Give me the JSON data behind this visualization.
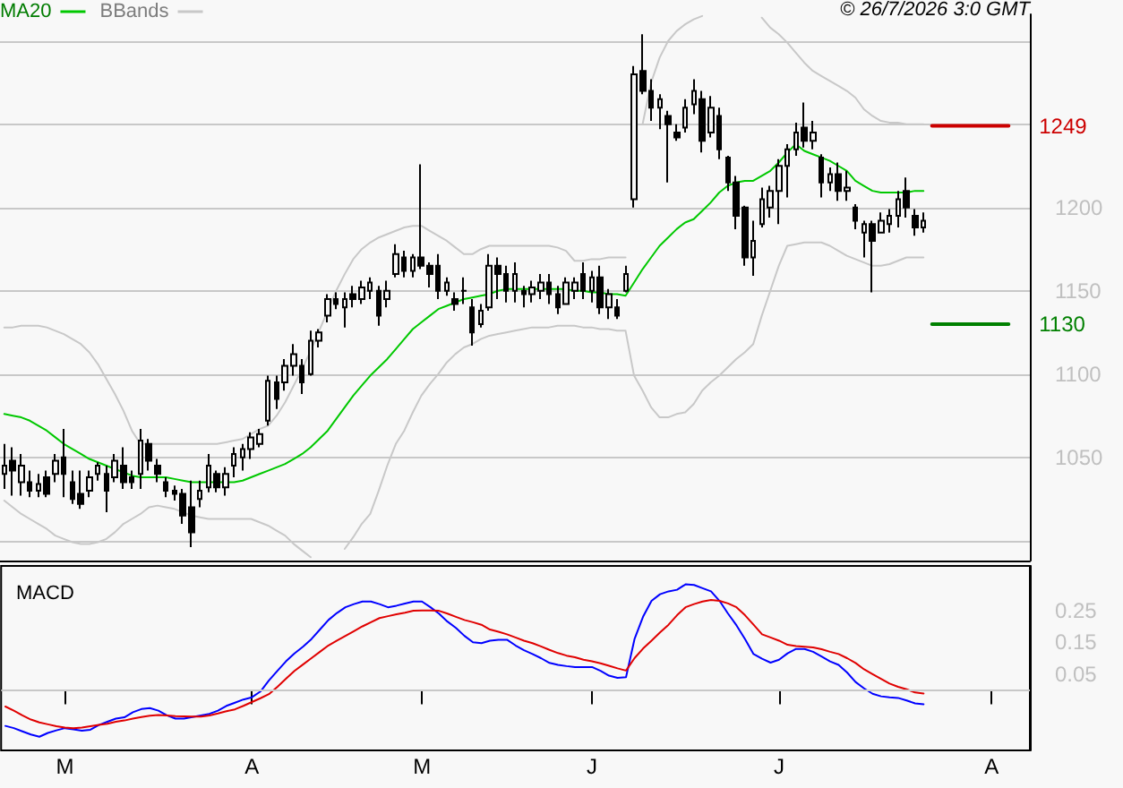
{
  "chart_data": [
    {
      "type": "candlestick",
      "color": "#000000",
      "marker": "none",
      "grid": "y",
      "legend": "top left",
      "tick_labels": "y",
      "annotations": [
        "© 26/7/2026 3:0 GMT"
      ],
      "categories": [
        null,
        null,
        null,
        null,
        null,
        null,
        null,
        null,
        null,
        null,
        null,
        null,
        null,
        null,
        null,
        null,
        null,
        null,
        null,
        null,
        null,
        null,
        null,
        null,
        null,
        null,
        null,
        null,
        null,
        null,
        null,
        null,
        null,
        null,
        null,
        null,
        null,
        null,
        null,
        null,
        null,
        null,
        null,
        null,
        null,
        null,
        null,
        null,
        null,
        null,
        null,
        null,
        null,
        null,
        null,
        null,
        null,
        null,
        null,
        null,
        null,
        null,
        null,
        null,
        null,
        null,
        null,
        null,
        null,
        null,
        null,
        null,
        null,
        null,
        null,
        null,
        null,
        null,
        null,
        null,
        null,
        null,
        null,
        null,
        null,
        null,
        null,
        null,
        null,
        null,
        null,
        null,
        null,
        null,
        null,
        null,
        null,
        null,
        null,
        null,
        null,
        null,
        null,
        null,
        null,
        null,
        null,
        null,
        null,
        null,
        null,
        null,
        null,
        null,
        null,
        null,
        null,
        null,
        null,
        null,
        null
      ],
      "ohlc": [
        [
          1040,
          1058,
          1031,
          1045
        ],
        [
          1048,
          1056,
          1027,
          1042
        ],
        [
          1035,
          1052,
          1027,
          1045
        ],
        [
          1035,
          1042,
          1026,
          1030
        ],
        [
          1030,
          1040,
          1026,
          1034
        ],
        [
          1038,
          1042,
          1026,
          1028
        ],
        [
          1040,
          1052,
          1035,
          1048
        ],
        [
          1050,
          1067,
          1026,
          1040
        ],
        [
          1035,
          1042,
          1022,
          1025
        ],
        [
          1028,
          1042,
          1019,
          1022
        ],
        [
          1030,
          1042,
          1026,
          1038
        ],
        [
          1040,
          1047,
          1036,
          1045
        ],
        [
          1040,
          1045,
          1017,
          1030
        ],
        [
          1038,
          1052,
          1035,
          1048
        ],
        [
          1045,
          1056,
          1031,
          1035
        ],
        [
          1038,
          1042,
          1031,
          1035
        ],
        [
          1040,
          1067,
          1031,
          1060
        ],
        [
          1058,
          1061,
          1042,
          1048
        ],
        [
          1045,
          1049,
          1035,
          1040
        ],
        [
          1035,
          1038,
          1026,
          1030
        ],
        [
          1030,
          1033,
          1024,
          1028
        ],
        [
          1028,
          1031,
          1010,
          1015
        ],
        [
          1020,
          1036,
          996,
          1005
        ],
        [
          1025,
          1036,
          1020,
          1030
        ],
        [
          1032,
          1052,
          1029,
          1045
        ],
        [
          1040,
          1042,
          1029,
          1032
        ],
        [
          1032,
          1044,
          1027,
          1040
        ],
        [
          1045,
          1056,
          1038,
          1052
        ],
        [
          1050,
          1058,
          1042,
          1055
        ],
        [
          1055,
          1065,
          1049,
          1062
        ],
        [
          1058,
          1067,
          1056,
          1064
        ],
        [
          1072,
          1099,
          1069,
          1096
        ],
        [
          1095,
          1099,
          1079,
          1085
        ],
        [
          1095,
          1109,
          1090,
          1105
        ],
        [
          1105,
          1118,
          1099,
          1112
        ],
        [
          1105,
          1109,
          1088,
          1095
        ],
        [
          1100,
          1126,
          1099,
          1120
        ],
        [
          1120,
          1127,
          1116,
          1125
        ],
        [
          1135,
          1148,
          1131,
          1145
        ],
        [
          1145,
          1149,
          1139,
          1142
        ],
        [
          1140,
          1149,
          1128,
          1145
        ],
        [
          1148,
          1153,
          1140,
          1145
        ],
        [
          1145,
          1156,
          1142,
          1152
        ],
        [
          1150,
          1158,
          1145,
          1155
        ],
        [
          1150,
          1153,
          1129,
          1135
        ],
        [
          1145,
          1156,
          1140,
          1150
        ],
        [
          1160,
          1178,
          1158,
          1172
        ],
        [
          1170,
          1174,
          1158,
          1162
        ],
        [
          1162,
          1172,
          1158,
          1170
        ],
        [
          1170,
          1226,
          1163,
          1165
        ],
        [
          1165,
          1167,
          1152,
          1160
        ],
        [
          1165,
          1172,
          1145,
          1150
        ],
        [
          1150,
          1158,
          1147,
          1155
        ],
        [
          1145,
          1149,
          1138,
          1142
        ],
        [
          1150,
          1158,
          1142,
          1150
        ],
        [
          1140,
          1145,
          1117,
          1125
        ],
        [
          1130,
          1142,
          1128,
          1138
        ],
        [
          1140,
          1172,
          1138,
          1165
        ],
        [
          1165,
          1170,
          1145,
          1160
        ],
        [
          1160,
          1165,
          1143,
          1150
        ],
        [
          1150,
          1167,
          1143,
          1160
        ],
        [
          1150,
          1153,
          1140,
          1148
        ],
        [
          1148,
          1156,
          1143,
          1152
        ],
        [
          1150,
          1160,
          1145,
          1155
        ],
        [
          1155,
          1160,
          1142,
          1148
        ],
        [
          1148,
          1153,
          1136,
          1140
        ],
        [
          1142,
          1158,
          1142,
          1155
        ],
        [
          1150,
          1158,
          1145,
          1155
        ],
        [
          1160,
          1167,
          1145,
          1150
        ],
        [
          1150,
          1162,
          1143,
          1158
        ],
        [
          1158,
          1165,
          1136,
          1140
        ],
        [
          1140,
          1151,
          1133,
          1148
        ],
        [
          1140,
          1145,
          1133,
          1135
        ],
        [
          1150,
          1165,
          1149,
          1160
        ],
        [
          1205,
          1285,
          1200,
          1280
        ],
        [
          1282,
          1304,
          1268,
          1270
        ],
        [
          1270,
          1277,
          1252,
          1260
        ],
        [
          1260,
          1268,
          1247,
          1265
        ],
        [
          1255,
          1258,
          1215,
          1250
        ],
        [
          1245,
          1250,
          1240,
          1242
        ],
        [
          1248,
          1265,
          1245,
          1260
        ],
        [
          1262,
          1277,
          1256,
          1270
        ],
        [
          1265,
          1270,
          1233,
          1240
        ],
        [
          1245,
          1267,
          1242,
          1260
        ],
        [
          1255,
          1260,
          1229,
          1235
        ],
        [
          1230,
          1231,
          1210,
          1215
        ],
        [
          1215,
          1219,
          1187,
          1195
        ],
        [
          1200,
          1201,
          1165,
          1170
        ],
        [
          1170,
          1192,
          1159,
          1180
        ],
        [
          1190,
          1212,
          1188,
          1205
        ],
        [
          1200,
          1213,
          1194,
          1210
        ],
        [
          1210,
          1229,
          1190,
          1225
        ],
        [
          1225,
          1238,
          1206,
          1235
        ],
        [
          1235,
          1251,
          1231,
          1245
        ],
        [
          1248,
          1263,
          1236,
          1240
        ],
        [
          1240,
          1252,
          1235,
          1245
        ],
        [
          1230,
          1232,
          1206,
          1215
        ],
        [
          1215,
          1224,
          1210,
          1220
        ],
        [
          1220,
          1227,
          1204,
          1210
        ],
        [
          1210,
          1222,
          1204,
          1212
        ],
        [
          1200,
          1202,
          1187,
          1192
        ],
        [
          1185,
          1192,
          1170,
          1190
        ],
        [
          1190,
          1192,
          1149,
          1180
        ],
        [
          1185,
          1197,
          1185,
          1192
        ],
        [
          1190,
          1199,
          1185,
          1195
        ],
        [
          1195,
          1210,
          1188,
          1205
        ],
        [
          1210,
          1218,
          1194,
          1200
        ],
        [
          1195,
          1199,
          1183,
          1188
        ],
        [
          1188,
          1197,
          1185,
          1192
        ],
        null,
        null,
        null,
        null,
        null,
        null,
        null,
        null,
        null,
        null,
        null,
        null
      ],
      "series": [
        {
          "name": "MA20",
          "type": "line",
          "color": "#00c800",
          "values": [
            1076,
            1075,
            1074,
            1072,
            1069,
            1066,
            1062,
            1058,
            1055,
            1052,
            1049,
            1047,
            1045,
            1043,
            1041,
            1039,
            1038,
            1038,
            1038,
            1038,
            1037,
            1036,
            1035,
            1035,
            1035,
            1035,
            1035,
            1035,
            1036,
            1038,
            1040,
            1042,
            1044,
            1046,
            1049,
            1052,
            1056,
            1061,
            1066,
            1073,
            1080,
            1087,
            1093,
            1099,
            1104,
            1109,
            1115,
            1121,
            1127,
            1131,
            1135,
            1139,
            1141,
            1143,
            1145,
            1146,
            1147,
            1148,
            1150,
            1151,
            1151,
            1151,
            1151,
            1151,
            1151,
            1151,
            1151,
            1150,
            1150,
            1149,
            1149,
            1148,
            1148,
            1147,
            1155,
            1163,
            1170,
            1177,
            1182,
            1187,
            1191,
            1193,
            1198,
            1203,
            1209,
            1213,
            1215,
            1216,
            1216,
            1219,
            1222,
            1227,
            1233,
            1238,
            1234,
            1232,
            1230,
            1228,
            1225,
            1222,
            1216,
            1213,
            1210,
            1209,
            1209,
            1209,
            1209,
            1210,
            1210,
            null,
            null,
            null,
            null,
            null,
            null,
            null,
            null,
            null,
            null,
            null,
            null
          ]
        },
        {
          "name": "BBands",
          "type": "line",
          "color": "#c8c8c8",
          "values": [
            1128,
            1128,
            1129,
            1129,
            1129,
            1128,
            1126,
            1124,
            1121,
            1118,
            1113,
            1106,
            1097,
            1088,
            1078,
            1066,
            1058,
            1058,
            1058,
            1058,
            1058,
            1058,
            1058,
            1058,
            1058,
            1058,
            1059,
            1060,
            1061,
            1064,
            1067,
            1069,
            1075,
            1083,
            1093,
            1103,
            1114,
            1126,
            1138,
            1150,
            1160,
            1169,
            1175,
            1179,
            1182,
            1184,
            1186,
            1188,
            1189,
            1189,
            1186,
            1183,
            1180,
            1176,
            1172,
            1172,
            1175,
            1177,
            1177,
            1177,
            1177,
            1177,
            1177,
            1177,
            1177,
            1176,
            1174,
            1168,
            1168,
            1169,
            1169,
            1170,
            1170,
            1170,
            null,
            1250,
            1275,
            1290,
            1300,
            1306,
            1310,
            1313,
            1315,
            null,
            null,
            null,
            null,
            null,
            null,
            1314,
            1308,
            1304,
            1299,
            1293,
            1287,
            1282,
            1279,
            1276,
            1273,
            1270,
            1266,
            1259,
            1255,
            1252,
            1251,
            1251,
            1250,
            1250,
            1250,
            null,
            null,
            null,
            null,
            null,
            null,
            null,
            null,
            null,
            null,
            null,
            null
          ]
        },
        {
          "type": "line",
          "color": "#c8c8c8",
          "values": [
            1024,
            1020,
            1016,
            1013,
            1010,
            1007,
            1003,
            1001,
            999,
            998,
            998,
            999,
            1001,
            1005,
            1010,
            1013,
            1016,
            1020,
            1021,
            1020,
            1019,
            1017,
            1015,
            1014,
            1013,
            1013,
            1013,
            1013,
            1013,
            1013,
            1011,
            1009,
            1006,
            1003,
            998,
            994,
            990,
            null,
            null,
            null,
            995,
            1002,
            1010,
            1016,
            1030,
            1045,
            1058,
            1066,
            1077,
            1087,
            1094,
            1100,
            1107,
            1112,
            1116,
            1118,
            1121,
            1123,
            1124,
            1125,
            1126,
            1127,
            1128,
            1128,
            1128,
            1129,
            1129,
            1129,
            1128,
            1128,
            1127,
            1127,
            1126,
            1126,
            1099,
            1090,
            1080,
            1074,
            1074,
            1076,
            1077,
            1082,
            1090,
            1095,
            1099,
            1104,
            1109,
            1113,
            1118,
            1135,
            1150,
            1165,
            1177,
            1178,
            1179,
            1179,
            1179,
            1177,
            1174,
            1171,
            1169,
            1167,
            1165,
            1165,
            1166,
            1168,
            1170,
            1170,
            1170,
            null,
            null,
            null,
            null,
            null,
            null,
            null,
            null,
            null,
            null,
            null,
            null
          ]
        },
        {
          "type": "line",
          "color": "#cc0000",
          "values": [
            null,
            null,
            null,
            null,
            null,
            null,
            null,
            null,
            null,
            null,
            null,
            null,
            null,
            null,
            null,
            null,
            null,
            null,
            null,
            null,
            null,
            null,
            null,
            null,
            null,
            null,
            null,
            null,
            null,
            null,
            null,
            null,
            null,
            null,
            null,
            null,
            null,
            null,
            null,
            null,
            null,
            null,
            null,
            null,
            null,
            null,
            null,
            null,
            null,
            null,
            null,
            null,
            null,
            null,
            null,
            null,
            null,
            null,
            null,
            null,
            null,
            null,
            null,
            null,
            null,
            null,
            null,
            null,
            null,
            null,
            null,
            null,
            null,
            null,
            null,
            null,
            null,
            null,
            null,
            null,
            null,
            null,
            null,
            null,
            null,
            null,
            null,
            null,
            null,
            null,
            null,
            null,
            null,
            null,
            null,
            null,
            null,
            null,
            null,
            null,
            null,
            null,
            null,
            null,
            null,
            null,
            null,
            null,
            null,
            1249,
            1249,
            1249,
            1249,
            1249,
            1249,
            1249,
            1249,
            1249,
            1249,
            null,
            null
          ],
          "value_labels": [
            null,
            null,
            null,
            null,
            null,
            null,
            null,
            null,
            null,
            null,
            null,
            null,
            null,
            null,
            null,
            null,
            null,
            null,
            null,
            null,
            null,
            null,
            null,
            null,
            null,
            null,
            null,
            null,
            null,
            null,
            null,
            null,
            null,
            null,
            null,
            null,
            null,
            null,
            null,
            null,
            null,
            null,
            null,
            null,
            null,
            null,
            null,
            null,
            null,
            null,
            null,
            null,
            null,
            null,
            null,
            null,
            null,
            null,
            null,
            null,
            null,
            null,
            null,
            null,
            null,
            null,
            null,
            null,
            null,
            null,
            null,
            null,
            null,
            null,
            null,
            null,
            null,
            null,
            null,
            null,
            null,
            null,
            null,
            null,
            null,
            null,
            null,
            null,
            null,
            null,
            null,
            null,
            null,
            null,
            null,
            null,
            null,
            null,
            null,
            null,
            null,
            null,
            null,
            null,
            null,
            null,
            null,
            null,
            null,
            null,
            null,
            null,
            null,
            null,
            null,
            null,
            null,
            null,
            "1249",
            null,
            null
          ]
        },
        {
          "type": "line",
          "color": "#008000",
          "values": [
            null,
            null,
            null,
            null,
            null,
            null,
            null,
            null,
            null,
            null,
            null,
            null,
            null,
            null,
            null,
            null,
            null,
            null,
            null,
            null,
            null,
            null,
            null,
            null,
            null,
            null,
            null,
            null,
            null,
            null,
            null,
            null,
            null,
            null,
            null,
            null,
            null,
            null,
            null,
            null,
            null,
            null,
            null,
            null,
            null,
            null,
            null,
            null,
            null,
            null,
            null,
            null,
            null,
            null,
            null,
            null,
            null,
            null,
            null,
            null,
            null,
            null,
            null,
            null,
            null,
            null,
            null,
            null,
            null,
            null,
            null,
            null,
            null,
            null,
            null,
            null,
            null,
            null,
            null,
            null,
            null,
            null,
            null,
            null,
            null,
            null,
            null,
            null,
            null,
            null,
            null,
            null,
            null,
            null,
            null,
            null,
            null,
            null,
            null,
            null,
            null,
            null,
            null,
            null,
            null,
            null,
            null,
            null,
            null,
            1130,
            1130,
            1130,
            1130,
            1130,
            1130,
            1130,
            1130,
            1130,
            1130,
            null,
            null
          ],
          "value_labels": [
            null,
            null,
            null,
            null,
            null,
            null,
            null,
            null,
            null,
            null,
            null,
            null,
            null,
            null,
            null,
            null,
            null,
            null,
            null,
            null,
            null,
            null,
            null,
            null,
            null,
            null,
            null,
            null,
            null,
            null,
            null,
            null,
            null,
            null,
            null,
            null,
            null,
            null,
            null,
            null,
            null,
            null,
            null,
            null,
            null,
            null,
            null,
            null,
            null,
            null,
            null,
            null,
            null,
            null,
            null,
            null,
            null,
            null,
            null,
            null,
            null,
            null,
            null,
            null,
            null,
            null,
            null,
            null,
            null,
            null,
            null,
            null,
            null,
            null,
            null,
            null,
            null,
            null,
            null,
            null,
            null,
            null,
            null,
            null,
            null,
            null,
            null,
            null,
            null,
            null,
            null,
            null,
            null,
            null,
            null,
            null,
            null,
            null,
            null,
            null,
            null,
            null,
            null,
            null,
            null,
            null,
            null,
            null,
            null,
            null,
            null,
            null,
            null,
            null,
            null,
            null,
            null,
            null,
            "1130",
            null,
            null
          ]
        }
      ],
      "ylim": [
        988,
        1316
      ],
      "yticks": [
        {
          "value": 1000,
          "label": null
        },
        1050,
        1100,
        1150,
        1200,
        {
          "value": 1250,
          "label": null
        },
        {
          "value": 1300,
          "label": null
        }
      ]
    },
    {
      "type": "line",
      "title": "MACD",
      "marker": "none",
      "grid": false,
      "legend": false,
      "categories": [
        null,
        null,
        null,
        null,
        null,
        null,
        null,
        "M",
        null,
        null,
        null,
        null,
        null,
        null,
        null,
        null,
        null,
        null,
        null,
        null,
        null,
        null,
        null,
        null,
        null,
        null,
        null,
        null,
        null,
        "A",
        null,
        null,
        null,
        null,
        null,
        null,
        null,
        null,
        null,
        null,
        null,
        null,
        null,
        null,
        null,
        null,
        null,
        null,
        null,
        "M",
        null,
        null,
        null,
        null,
        null,
        null,
        null,
        null,
        null,
        null,
        null,
        null,
        null,
        null,
        null,
        null,
        null,
        null,
        null,
        "J",
        null,
        null,
        null,
        null,
        null,
        null,
        null,
        null,
        null,
        null,
        null,
        null,
        null,
        null,
        null,
        null,
        null,
        null,
        null,
        null,
        null,
        "J",
        null,
        null,
        null,
        null,
        null,
        null,
        null,
        null,
        null,
        null,
        null,
        null,
        null,
        null,
        null,
        null,
        null,
        null,
        null,
        null,
        null,
        null,
        null,
        null,
        "A",
        null,
        null,
        null,
        null
      ],
      "series": [
        {
          "color": "#0000ff",
          "values": [
            -0.113,
            -0.12,
            -0.13,
            -0.14,
            -0.147,
            -0.135,
            -0.127,
            -0.12,
            -0.124,
            -0.128,
            -0.125,
            -0.11,
            -0.1,
            -0.09,
            -0.086,
            -0.07,
            -0.06,
            -0.057,
            -0.065,
            -0.08,
            -0.09,
            -0.09,
            -0.085,
            -0.08,
            -0.075,
            -0.065,
            -0.05,
            -0.04,
            -0.03,
            -0.023,
            -0.005,
            0.03,
            0.06,
            0.09,
            0.115,
            0.136,
            0.16,
            0.19,
            0.22,
            0.242,
            0.26,
            0.27,
            0.278,
            0.278,
            0.27,
            0.26,
            0.265,
            0.272,
            0.278,
            0.278,
            0.26,
            0.24,
            0.215,
            0.195,
            0.17,
            0.15,
            0.147,
            0.155,
            0.158,
            0.158,
            0.14,
            0.125,
            0.113,
            0.1,
            0.085,
            0.079,
            0.075,
            0.072,
            0.072,
            0.072,
            0.06,
            0.045,
            0.038,
            0.04,
            0.16,
            0.23,
            0.28,
            0.301,
            0.31,
            0.315,
            0.332,
            0.33,
            0.32,
            0.31,
            0.28,
            0.24,
            0.203,
            0.16,
            0.113,
            0.098,
            0.086,
            0.095,
            0.115,
            0.129,
            0.129,
            0.12,
            0.105,
            0.09,
            0.079,
            0.055,
            0.025,
            0.005,
            -0.012,
            -0.02,
            -0.023,
            -0.025,
            -0.033,
            -0.042,
            -0.045,
            null,
            null,
            null,
            null,
            null,
            null,
            null,
            null,
            null,
            null,
            null,
            null
          ]
        },
        {
          "color": "#e00000",
          "values": [
            -0.052,
            -0.065,
            -0.08,
            -0.093,
            -0.102,
            -0.108,
            -0.114,
            -0.118,
            -0.12,
            -0.118,
            -0.114,
            -0.11,
            -0.106,
            -0.1,
            -0.096,
            -0.09,
            -0.085,
            -0.081,
            -0.079,
            -0.08,
            -0.082,
            -0.083,
            -0.084,
            -0.084,
            -0.08,
            -0.074,
            -0.067,
            -0.061,
            -0.05,
            -0.038,
            -0.026,
            -0.013,
            0.01,
            0.035,
            0.06,
            0.08,
            0.1,
            0.12,
            0.14,
            0.155,
            0.17,
            0.185,
            0.2,
            0.213,
            0.226,
            0.232,
            0.238,
            0.243,
            0.249,
            0.25,
            0.25,
            0.249,
            0.24,
            0.23,
            0.22,
            0.213,
            0.205,
            0.19,
            0.183,
            0.175,
            0.165,
            0.155,
            0.147,
            0.137,
            0.126,
            0.116,
            0.108,
            0.103,
            0.095,
            0.09,
            0.084,
            0.076,
            0.068,
            0.061,
            0.1,
            0.13,
            0.155,
            0.181,
            0.205,
            0.235,
            0.26,
            0.27,
            0.278,
            0.283,
            0.28,
            0.272,
            0.26,
            0.235,
            0.205,
            0.175,
            0.165,
            0.155,
            0.142,
            0.138,
            0.136,
            0.134,
            0.128,
            0.12,
            0.113,
            0.1,
            0.085,
            0.065,
            0.05,
            0.035,
            0.02,
            0.01,
            0.002,
            -0.008,
            -0.011,
            null,
            null,
            null,
            null,
            null,
            null,
            null,
            null,
            null,
            null,
            null,
            null
          ]
        }
      ],
      "ylim": [
        -0.19,
        0.39
      ],
      "yticks": [
        0.05,
        0.15,
        0.25
      ],
      "ref_lines": [
        {
          "axis": "y",
          "value": 0,
          "color": "#c8c8c8"
        }
      ]
    }
  ]
}
